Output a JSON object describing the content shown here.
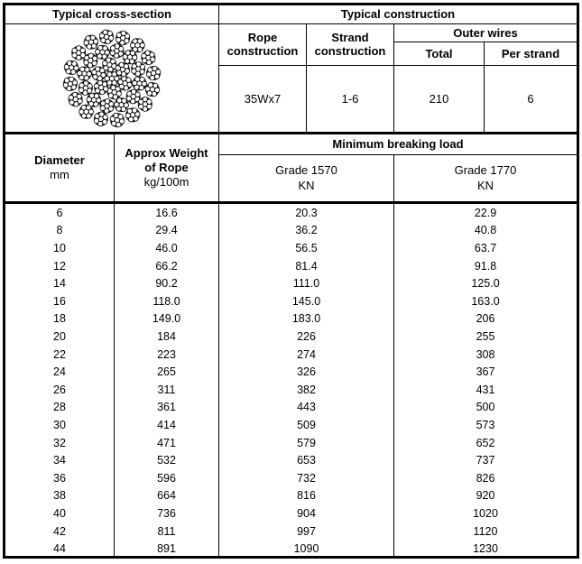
{
  "header": {
    "cross_section_title": "Typical cross-section",
    "construction_title": "Typical construction",
    "rope_construction_label": "Rope construction",
    "strand_construction_label": "Strand construction",
    "outer_wires_label": "Outer wires",
    "total_label": "Total",
    "per_strand_label": "Per strand",
    "values": {
      "rope_construction": "35Wx7",
      "strand_construction": "1-6",
      "outer_wires_total": "210",
      "outer_wires_per_strand": "6"
    }
  },
  "table": {
    "diameter_label": "Diameter",
    "diameter_unit": "mm",
    "weight_label_line1": "Approx Weight",
    "weight_label_line2": "of Rope",
    "weight_unit": "kg/100m",
    "breaking_load_label": "Minimum breaking load",
    "grade_1570_label": "Grade 1570",
    "grade_1570_unit": "KN",
    "grade_1770_label": "Grade 1770",
    "grade_1770_unit": "KN",
    "rows": [
      [
        "6",
        "16.6",
        "20.3",
        "22.9"
      ],
      [
        "8",
        "29.4",
        "36.2",
        "40.8"
      ],
      [
        "10",
        "46.0",
        "56.5",
        "63.7"
      ],
      [
        "12",
        "66.2",
        "81.4",
        "91.8"
      ],
      [
        "14",
        "90.2",
        "111.0",
        "125.0"
      ],
      [
        "16",
        "118.0",
        "145.0",
        "163.0"
      ],
      [
        "18",
        "149.0",
        "183.0",
        "206"
      ],
      [
        "20",
        "184",
        "226",
        "255"
      ],
      [
        "22",
        "223",
        "274",
        "308"
      ],
      [
        "24",
        "265",
        "326",
        "367"
      ],
      [
        "26",
        "311",
        "382",
        "431"
      ],
      [
        "28",
        "361",
        "443",
        "500"
      ],
      [
        "30",
        "414",
        "509",
        "573"
      ],
      [
        "32",
        "471",
        "579",
        "652"
      ],
      [
        "34",
        "532",
        "653",
        "737"
      ],
      [
        "36",
        "596",
        "732",
        "826"
      ],
      [
        "38",
        "664",
        "816",
        "920"
      ],
      [
        "40",
        "736",
        "904",
        "1020"
      ],
      [
        "42",
        "811",
        "997",
        "1120"
      ],
      [
        "44",
        "891",
        "1090",
        "1230"
      ]
    ]
  },
  "diagram": {
    "description": "35Wx7 wire rope cross-section: 35 strands of 7 wires",
    "rings": [
      {
        "count": 1,
        "radius": 0
      },
      {
        "count": 6,
        "radius": 15.5
      },
      {
        "count": 12,
        "radius": 31
      },
      {
        "count": 16,
        "radius": 46.5
      }
    ],
    "cluster_radius": 8,
    "wire_radius": 2.7,
    "wire_offset": 5.3,
    "strand_fill": "#2b2b2b",
    "wire_fill": "#ffffff",
    "wire_stroke": "#000000"
  }
}
